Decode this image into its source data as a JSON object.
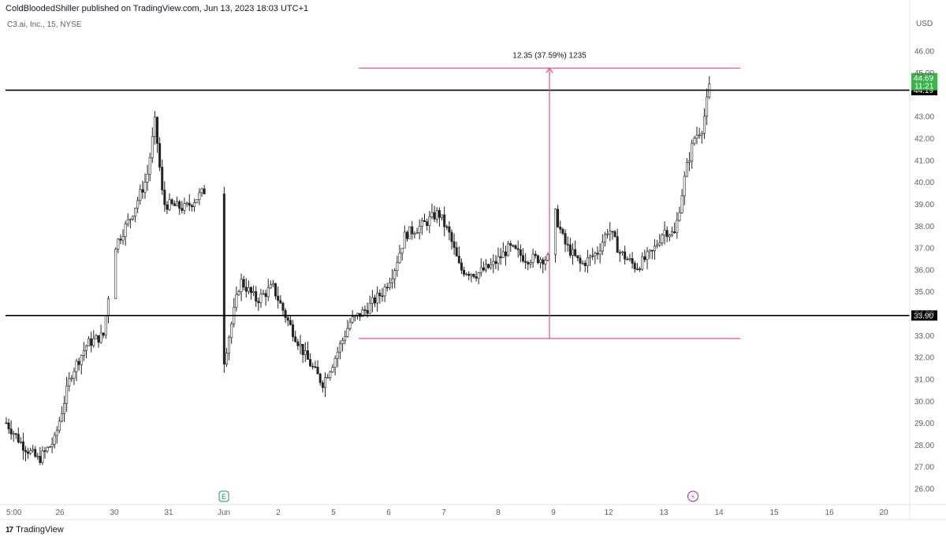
{
  "header": {
    "publisher_line": "ColdBloodedShiller published on TradingView.com, Jun 13, 2023 18:03 UTC+1",
    "symbol_line": "C3.ai, Inc., 15, NYSE"
  },
  "footer": {
    "brand": "TradingView",
    "logo_icon": "tradingview-logo-icon"
  },
  "colors": {
    "up": "#26a69a",
    "up_body": "#ffffff",
    "candle": "#222222",
    "measure": "#e0577e",
    "level_line": "#000000",
    "last_price_bg": "#3cb44b",
    "axis_text": "#5d606b",
    "grid_border": "#e0e3eb"
  },
  "chart_data": {
    "type": "candlestick",
    "y_axis_unit": "USD",
    "ylim": [
      25.3,
      46.8
    ],
    "y_ticks": [
      "46.00",
      "45.00",
      "43.00",
      "42.00",
      "41.00",
      "40.00",
      "39.00",
      "38.00",
      "37.00",
      "36.00",
      "35.00",
      "34.00",
      "33.00",
      "32.00",
      "31.00",
      "30.00",
      "29.00",
      "28.00",
      "27.00",
      "26.00"
    ],
    "x_ticks": [
      "5:00",
      "26",
      "30",
      "31",
      "Jun",
      "2",
      "5",
      "6",
      "7",
      "8",
      "9",
      "12",
      "13",
      "14",
      "15",
      "16",
      "20"
    ],
    "horizontal_levels": [
      {
        "name": "resistance",
        "value": 44.19,
        "label": "44.19"
      },
      {
        "name": "support",
        "value": 33.9,
        "label": "33.90"
      }
    ],
    "last_price": {
      "value": 44.69,
      "label": "44.69",
      "countdown": "11:21"
    },
    "measure": {
      "label": "12.35 (37.59%) 1235",
      "low": 32.85,
      "high": 45.2
    },
    "events": [
      {
        "session": "Jun",
        "type": "earnings",
        "glyph": "E",
        "icon": "earnings-icon"
      },
      {
        "session": "13",
        "type": "dividend-split",
        "glyph": "⚡",
        "icon": "lightning-icon"
      }
    ],
    "price_path": {
      "description_points": [
        {
          "s": 0,
          "p": 29.0
        },
        {
          "s": 0.3,
          "p": 28.0
        },
        {
          "s": 0.6,
          "p": 27.3
        },
        {
          "s": 0.9,
          "p": 28.2
        },
        {
          "s": 1.0,
          "p": 29.2
        },
        {
          "s": 1.2,
          "p": 31.2
        },
        {
          "s": 1.5,
          "p": 32.6
        },
        {
          "s": 1.8,
          "p": 33.0
        },
        {
          "s": 2.0,
          "p": 37.0
        },
        {
          "s": 2.3,
          "p": 38.4
        },
        {
          "s": 2.6,
          "p": 40.2
        },
        {
          "s": 2.75,
          "p": 42.8
        },
        {
          "s": 2.9,
          "p": 39.0
        },
        {
          "s": 3.3,
          "p": 38.8
        },
        {
          "s": 3.65,
          "p": 39.6
        },
        {
          "s": 4.0,
          "p": 31.8
        },
        {
          "s": 4.3,
          "p": 35.5
        },
        {
          "s": 4.6,
          "p": 34.6
        },
        {
          "s": 4.9,
          "p": 35.2
        },
        {
          "s": 5.2,
          "p": 33.5
        },
        {
          "s": 5.5,
          "p": 32.0
        },
        {
          "s": 5.8,
          "p": 30.8
        },
        {
          "s": 6.0,
          "p": 31.8
        },
        {
          "s": 6.3,
          "p": 33.6
        },
        {
          "s": 6.6,
          "p": 34.2
        },
        {
          "s": 6.9,
          "p": 35.0
        },
        {
          "s": 7.1,
          "p": 36.0
        },
        {
          "s": 7.3,
          "p": 37.6
        },
        {
          "s": 7.6,
          "p": 38.0
        },
        {
          "s": 7.9,
          "p": 38.6
        },
        {
          "s": 8.1,
          "p": 37.6
        },
        {
          "s": 8.3,
          "p": 36.0
        },
        {
          "s": 8.6,
          "p": 35.8
        },
        {
          "s": 8.9,
          "p": 36.2
        },
        {
          "s": 9.2,
          "p": 37.0
        },
        {
          "s": 9.5,
          "p": 36.5
        },
        {
          "s": 9.9,
          "p": 36.5
        },
        {
          "s": 10.0,
          "p": 38.8
        },
        {
          "s": 10.2,
          "p": 37.2
        },
        {
          "s": 10.5,
          "p": 36.2
        },
        {
          "s": 10.8,
          "p": 36.8
        },
        {
          "s": 11.0,
          "p": 37.9
        },
        {
          "s": 11.2,
          "p": 36.8
        },
        {
          "s": 11.5,
          "p": 36.1
        },
        {
          "s": 11.8,
          "p": 36.8
        },
        {
          "s": 12.0,
          "p": 37.8
        },
        {
          "s": 12.2,
          "p": 37.6
        },
        {
          "s": 12.4,
          "p": 40.5
        },
        {
          "s": 12.55,
          "p": 42.0
        },
        {
          "s": 12.7,
          "p": 42.5
        },
        {
          "s": 12.85,
          "p": 44.69
        }
      ]
    }
  }
}
